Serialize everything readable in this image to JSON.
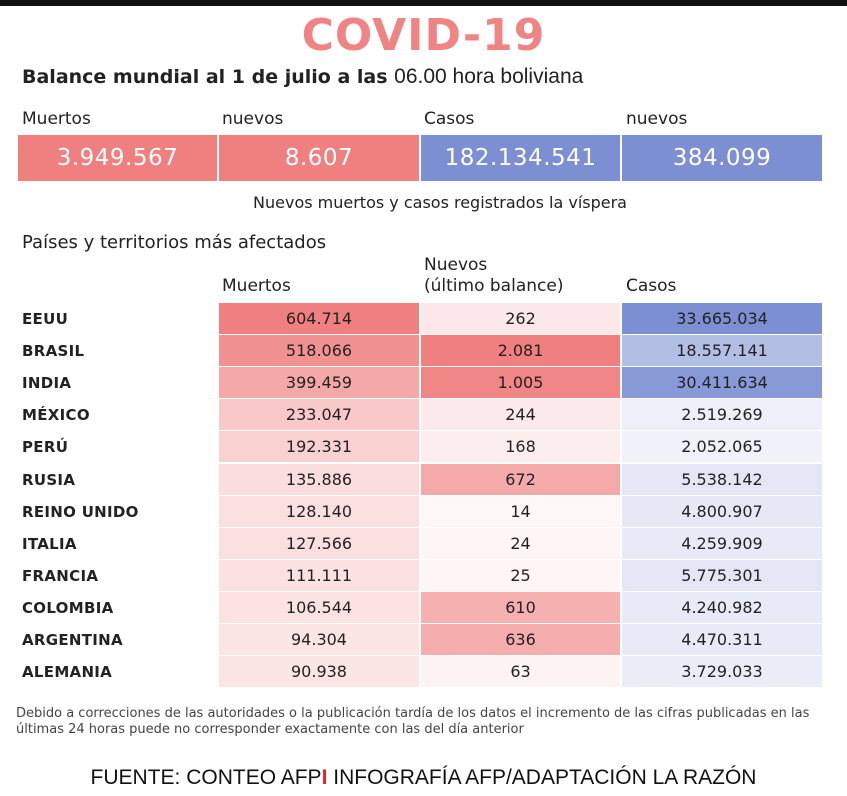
{
  "title": "COVID-19",
  "subtitle": {
    "bold_part": "Balance mundial al 1 de julio a las ",
    "normal_part": "06.00 hora boliviana"
  },
  "summary": {
    "muertos_label": "Muertos",
    "muertos_value": "3.949.567",
    "muertos_nuevos_label": "nuevos",
    "muertos_nuevos_value": "8.607",
    "casos_label": "Casos",
    "casos_value": "182.134.541",
    "casos_nuevos_label": "nuevos",
    "casos_nuevos_value": "384.099",
    "red_color": "#f08080",
    "blue_color": "#7b8fd2"
  },
  "summary_note": "Nuevos muertos y casos registrados la víspera",
  "table": {
    "section_title": "Países y territorios más afectados",
    "headers": {
      "muertos": "Muertos",
      "nuevos_line1": "Nuevos",
      "nuevos_line2": "(último balance)",
      "casos": "Casos"
    },
    "rows": [
      {
        "country": "EEUU",
        "muertos": "604.714",
        "nuevos": "262",
        "casos": "33.665.034",
        "muertos_intensity": 1.0,
        "nuevos_intensity": 0.126,
        "casos_intensity": 1.0
      },
      {
        "country": "BRASIL",
        "muertos": "518.066",
        "nuevos": "2.081",
        "casos": "18.557.141",
        "muertos_intensity": 0.857,
        "nuevos_intensity": 1.0,
        "casos_intensity": 0.551
      },
      {
        "country": "INDIA",
        "muertos": "399.459",
        "nuevos": "1.005",
        "casos": "30.411.634",
        "muertos_intensity": 0.661,
        "nuevos_intensity": 0.95,
        "casos_intensity": 0.903
      },
      {
        "country": "MÉXICO",
        "muertos": "233.047",
        "nuevos": "244",
        "casos": "2.519.269",
        "muertos_intensity": 0.385,
        "nuevos_intensity": 0.117,
        "casos_intensity": 0.075
      },
      {
        "country": "PERÚ",
        "muertos": "192.331",
        "nuevos": "168",
        "casos": "2.052.065",
        "muertos_intensity": 0.318,
        "nuevos_intensity": 0.081,
        "casos_intensity": 0.061
      },
      {
        "country": "RUSIA",
        "muertos": "135.886",
        "nuevos": "672",
        "casos": "5.538.142",
        "muertos_intensity": 0.225,
        "nuevos_intensity": 0.65,
        "casos_intensity": 0.165
      },
      {
        "country": "REINO UNIDO",
        "muertos": "128.140",
        "nuevos": "14",
        "casos": "4.800.907",
        "muertos_intensity": 0.212,
        "nuevos_intensity": 0.007,
        "casos_intensity": 0.143
      },
      {
        "country": "ITALIA",
        "muertos": "127.566",
        "nuevos": "24",
        "casos": "4.259.909",
        "muertos_intensity": 0.211,
        "nuevos_intensity": 0.012,
        "casos_intensity": 0.127
      },
      {
        "country": "FRANCIA",
        "muertos": "111.111",
        "nuevos": "25",
        "casos": "5.775.301",
        "muertos_intensity": 0.184,
        "nuevos_intensity": 0.012,
        "casos_intensity": 0.172
      },
      {
        "country": "COLOMBIA",
        "muertos": "106.544",
        "nuevos": "610",
        "casos": "4.240.982",
        "muertos_intensity": 0.176,
        "nuevos_intensity": 0.6,
        "casos_intensity": 0.126
      },
      {
        "country": "ARGENTINA",
        "muertos": "94.304",
        "nuevos": "636",
        "casos": "4.470.311",
        "muertos_intensity": 0.156,
        "nuevos_intensity": 0.62,
        "casos_intensity": 0.133
      },
      {
        "country": "ALEMANIA",
        "muertos": "90.938",
        "nuevos": "63",
        "casos": "3.729.033",
        "muertos_intensity": 0.15,
        "nuevos_intensity": 0.03,
        "casos_intensity": 0.111
      }
    ]
  },
  "footnote": "Debido a correcciones de las autoridades o la publicación tardía de los datos  el incremento de las cifras publicadas en las últimas 24 horas puede no corresponder exactamente con las del día anterior",
  "source": {
    "part1": "FUENTE: CONTEO AFP",
    "separator": "I",
    "part2": " INFOGRAFÍA AFP/ADAPTACIÓN LA RAZÓN"
  }
}
